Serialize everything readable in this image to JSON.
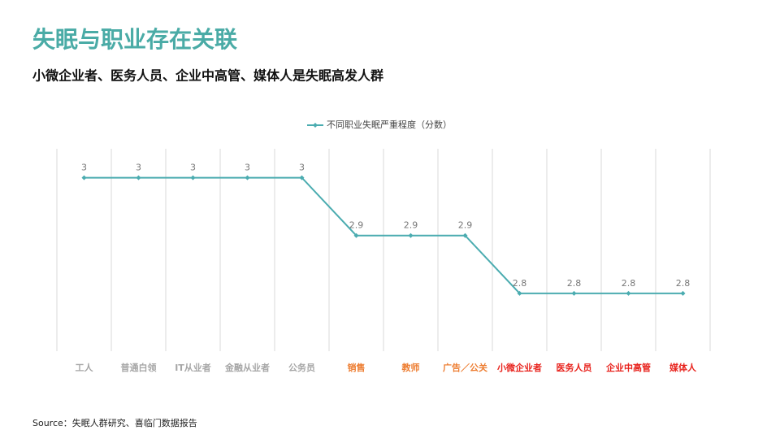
{
  "title": "失眠与职业存在关联",
  "subtitle": "小微企业者、医务人员、企业中高管、媒体人是失眠高发人群",
  "source": "Source：失眠人群研究、喜临门数据报告",
  "chart_data": {
    "type": "line",
    "categories": [
      "工人",
      "普通白领",
      "IT从业者",
      "金融从业者",
      "公务员",
      "销售",
      "教师",
      "广告／公关",
      "小微企业者",
      "医务人员",
      "企业中高管",
      "媒体人"
    ],
    "category_colors": [
      "#a6a6a6",
      "#a6a6a6",
      "#a6a6a6",
      "#a6a6a6",
      "#a6a6a6",
      "#ed7d31",
      "#ed7d31",
      "#ed7d31",
      "#e8231d",
      "#e8231d",
      "#e8231d",
      "#e8231d"
    ],
    "series": [
      {
        "name": "不同职业失眠严重程度（分数）",
        "color": "#4bacb0",
        "values": [
          3,
          3,
          3,
          3,
          3,
          2.9,
          2.9,
          2.9,
          2.8,
          2.8,
          2.8,
          2.8
        ]
      }
    ],
    "ylim": [
      2.7,
      3.05
    ],
    "data_labels": true,
    "grid": "vertical",
    "legend": "top"
  }
}
